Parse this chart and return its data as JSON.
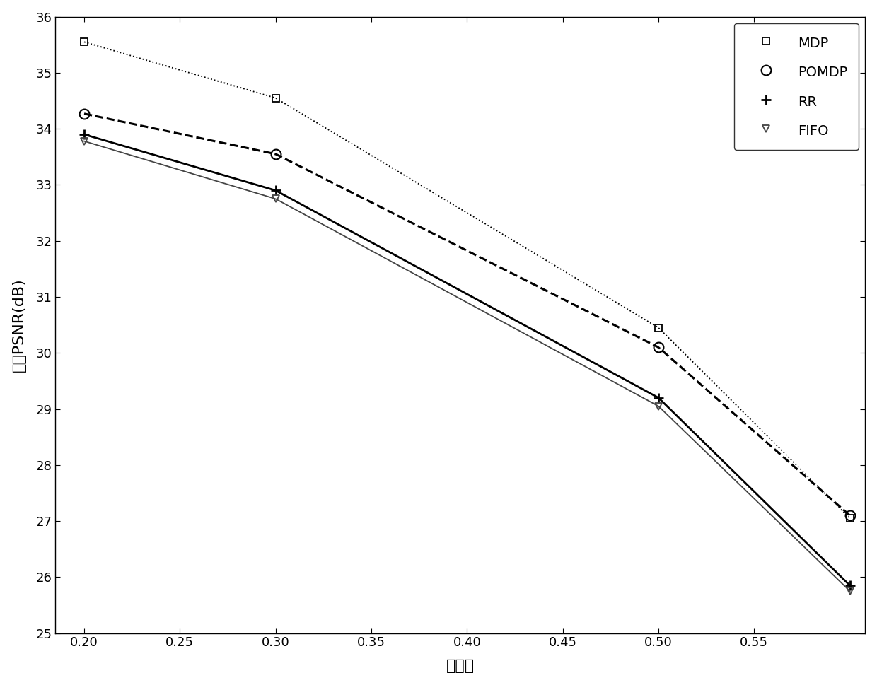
{
  "title": "",
  "xlabel": "丢包率",
  "ylabel": "平均PSNR(dB)",
  "xlim": [
    0.185,
    0.608
  ],
  "ylim": [
    25,
    36
  ],
  "xticks": [
    0.2,
    0.25,
    0.3,
    0.35,
    0.4,
    0.45,
    0.5,
    0.55
  ],
  "yticks": [
    25,
    26,
    27,
    28,
    29,
    30,
    31,
    32,
    33,
    34,
    35,
    36
  ],
  "MDP": {
    "x": [
      0.2,
      0.3,
      0.5,
      0.6
    ],
    "y": [
      35.55,
      34.55,
      30.45,
      27.05
    ],
    "linestyle": "dotted",
    "marker": "s",
    "color": "#000000",
    "linewidth": 1.3,
    "markersize": 7
  },
  "POMDP": {
    "x": [
      0.2,
      0.3,
      0.5,
      0.6
    ],
    "y": [
      34.27,
      33.55,
      30.1,
      27.1
    ],
    "linestyle": "dashed",
    "marker": "o",
    "color": "#000000",
    "linewidth": 2.2,
    "markersize": 10
  },
  "RR": {
    "x": [
      0.2,
      0.3,
      0.5,
      0.6
    ],
    "y": [
      33.9,
      32.9,
      29.2,
      25.85
    ],
    "linestyle": "solid",
    "marker": "+",
    "color": "#000000",
    "linewidth": 2.0,
    "markersize": 10
  },
  "FIFO": {
    "x": [
      0.2,
      0.3,
      0.5,
      0.6
    ],
    "y": [
      33.78,
      32.75,
      29.05,
      25.75
    ],
    "linestyle": "solid",
    "marker": "^",
    "color": "#444444",
    "linewidth": 1.3,
    "markersize": 7
  },
  "legend_fontsize": 14,
  "axis_fontsize": 16,
  "tick_fontsize": 13,
  "background_color": "#ffffff"
}
